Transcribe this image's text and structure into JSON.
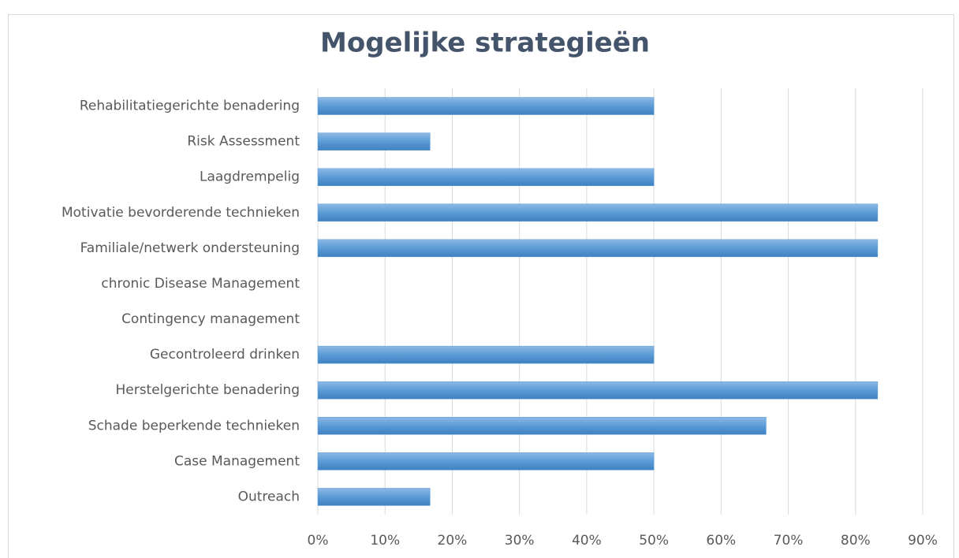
{
  "chart_data": {
    "type": "bar",
    "orientation": "horizontal",
    "title": "Mogelijke strategieën",
    "categories": [
      "Rehabilitatiegerichte benadering",
      "Risk Assessment",
      "Laagdrempelig",
      "Motivatie bevorderende technieken",
      "Familiale/netwerk ondersteuning",
      "chronic Disease Management",
      "Contingency management",
      "Gecontroleerd drinken",
      "Herstelgerichte benadering",
      "Schade beperkende technieken",
      "Case Management",
      "Outreach"
    ],
    "values": [
      50,
      16.7,
      50,
      83.3,
      83.3,
      0,
      0,
      50,
      83.3,
      66.7,
      50,
      16.7
    ],
    "color": "#5b9bd5",
    "xlim": [
      0,
      90
    ],
    "xticks": [
      {
        "value": 0,
        "label": "0%"
      },
      {
        "value": 10,
        "label": "10%"
      },
      {
        "value": 20,
        "label": "20%"
      },
      {
        "value": 30,
        "label": "30%"
      },
      {
        "value": 40,
        "label": "40%"
      },
      {
        "value": 50,
        "label": "50%"
      },
      {
        "value": 60,
        "label": "60%"
      },
      {
        "value": 70,
        "label": "70%"
      },
      {
        "value": 80,
        "label": "80%"
      },
      {
        "value": 90,
        "label": "90%"
      }
    ],
    "grid": true
  }
}
